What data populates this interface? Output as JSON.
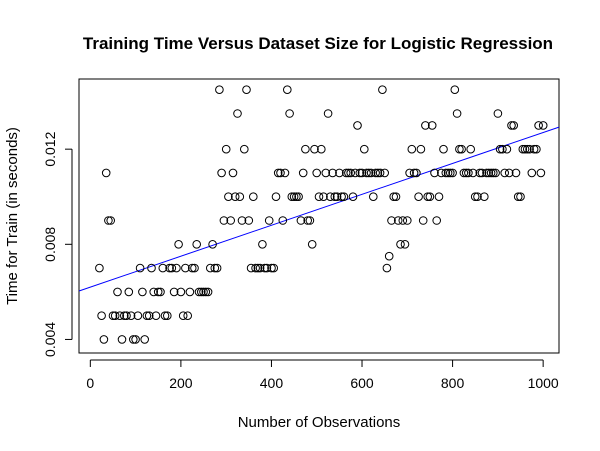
{
  "chart_data": {
    "type": "scatter",
    "title": "Training Time Versus Dataset Size for Logistic Regression",
    "xlabel": "Number of Observations",
    "ylabel": "Time for Train (in seconds)",
    "xlim": [
      -25,
      1035
    ],
    "ylim": [
      0.00343,
      0.01495
    ],
    "xticks": [
      0,
      200,
      400,
      600,
      800,
      1000
    ],
    "yticks": [
      0.004,
      0.008,
      0.012
    ],
    "ytick_labels": [
      "0.004",
      "0.008",
      "0.012"
    ],
    "grid": false,
    "point_color": "#000000",
    "line_color": "#0000ff",
    "trendline": {
      "intercept": 0.0062,
      "slope": 6.5e-06
    },
    "points": [
      [
        20,
        0.007
      ],
      [
        25,
        0.005
      ],
      [
        30,
        0.004
      ],
      [
        35,
        0.011
      ],
      [
        40,
        0.009
      ],
      [
        45,
        0.009
      ],
      [
        50,
        0.005
      ],
      [
        55,
        0.005
      ],
      [
        60,
        0.006
      ],
      [
        65,
        0.005
      ],
      [
        70,
        0.004
      ],
      [
        75,
        0.005
      ],
      [
        80,
        0.005
      ],
      [
        85,
        0.006
      ],
      [
        90,
        0.005
      ],
      [
        95,
        0.004
      ],
      [
        100,
        0.004
      ],
      [
        105,
        0.005
      ],
      [
        110,
        0.007
      ],
      [
        115,
        0.006
      ],
      [
        120,
        0.004
      ],
      [
        125,
        0.005
      ],
      [
        130,
        0.005
      ],
      [
        135,
        0.007
      ],
      [
        140,
        0.006
      ],
      [
        145,
        0.005
      ],
      [
        150,
        0.006
      ],
      [
        155,
        0.006
      ],
      [
        160,
        0.007
      ],
      [
        165,
        0.005
      ],
      [
        170,
        0.005
      ],
      [
        175,
        0.007
      ],
      [
        180,
        0.007
      ],
      [
        185,
        0.006
      ],
      [
        190,
        0.007
      ],
      [
        195,
        0.008
      ],
      [
        200,
        0.006
      ],
      [
        205,
        0.005
      ],
      [
        210,
        0.007
      ],
      [
        215,
        0.005
      ],
      [
        220,
        0.006
      ],
      [
        225,
        0.007
      ],
      [
        230,
        0.007
      ],
      [
        235,
        0.008
      ],
      [
        240,
        0.006
      ],
      [
        245,
        0.006
      ],
      [
        250,
        0.006
      ],
      [
        255,
        0.006
      ],
      [
        260,
        0.006
      ],
      [
        265,
        0.007
      ],
      [
        270,
        0.008
      ],
      [
        275,
        0.007
      ],
      [
        280,
        0.007
      ],
      [
        285,
        0.0145
      ],
      [
        290,
        0.011
      ],
      [
        295,
        0.009
      ],
      [
        300,
        0.012
      ],
      [
        305,
        0.01
      ],
      [
        310,
        0.009
      ],
      [
        315,
        0.011
      ],
      [
        320,
        0.01
      ],
      [
        325,
        0.0135
      ],
      [
        330,
        0.01
      ],
      [
        335,
        0.009
      ],
      [
        340,
        0.012
      ],
      [
        345,
        0.0145
      ],
      [
        350,
        0.009
      ],
      [
        355,
        0.007
      ],
      [
        360,
        0.01
      ],
      [
        365,
        0.007
      ],
      [
        370,
        0.007
      ],
      [
        375,
        0.007
      ],
      [
        380,
        0.008
      ],
      [
        385,
        0.007
      ],
      [
        390,
        0.007
      ],
      [
        395,
        0.009
      ],
      [
        400,
        0.007
      ],
      [
        405,
        0.007
      ],
      [
        410,
        0.01
      ],
      [
        415,
        0.011
      ],
      [
        420,
        0.011
      ],
      [
        425,
        0.009
      ],
      [
        430,
        0.011
      ],
      [
        435,
        0.0145
      ],
      [
        440,
        0.0135
      ],
      [
        445,
        0.01
      ],
      [
        450,
        0.01
      ],
      [
        455,
        0.01
      ],
      [
        460,
        0.01
      ],
      [
        465,
        0.009
      ],
      [
        470,
        0.011
      ],
      [
        475,
        0.012
      ],
      [
        480,
        0.009
      ],
      [
        485,
        0.009
      ],
      [
        490,
        0.008
      ],
      [
        495,
        0.012
      ],
      [
        500,
        0.011
      ],
      [
        505,
        0.01
      ],
      [
        510,
        0.012
      ],
      [
        515,
        0.01
      ],
      [
        520,
        0.011
      ],
      [
        525,
        0.0135
      ],
      [
        530,
        0.01
      ],
      [
        535,
        0.011
      ],
      [
        540,
        0.01
      ],
      [
        545,
        0.01
      ],
      [
        550,
        0.011
      ],
      [
        555,
        0.01
      ],
      [
        560,
        0.01
      ],
      [
        565,
        0.011
      ],
      [
        570,
        0.011
      ],
      [
        575,
        0.011
      ],
      [
        580,
        0.01
      ],
      [
        585,
        0.011
      ],
      [
        590,
        0.013
      ],
      [
        595,
        0.011
      ],
      [
        600,
        0.011
      ],
      [
        605,
        0.012
      ],
      [
        610,
        0.011
      ],
      [
        615,
        0.011
      ],
      [
        620,
        0.011
      ],
      [
        625,
        0.01
      ],
      [
        630,
        0.011
      ],
      [
        635,
        0.011
      ],
      [
        640,
        0.011
      ],
      [
        645,
        0.0145
      ],
      [
        650,
        0.011
      ],
      [
        655,
        0.007
      ],
      [
        660,
        0.0075
      ],
      [
        665,
        0.009
      ],
      [
        670,
        0.01
      ],
      [
        675,
        0.01
      ],
      [
        680,
        0.009
      ],
      [
        685,
        0.008
      ],
      [
        690,
        0.009
      ],
      [
        695,
        0.008
      ],
      [
        700,
        0.009
      ],
      [
        705,
        0.011
      ],
      [
        710,
        0.012
      ],
      [
        715,
        0.011
      ],
      [
        720,
        0.011
      ],
      [
        725,
        0.01
      ],
      [
        730,
        0.012
      ],
      [
        735,
        0.009
      ],
      [
        740,
        0.013
      ],
      [
        745,
        0.01
      ],
      [
        750,
        0.01
      ],
      [
        755,
        0.013
      ],
      [
        760,
        0.011
      ],
      [
        765,
        0.009
      ],
      [
        770,
        0.01
      ],
      [
        775,
        0.011
      ],
      [
        780,
        0.012
      ],
      [
        785,
        0.011
      ],
      [
        790,
        0.011
      ],
      [
        795,
        0.011
      ],
      [
        800,
        0.011
      ],
      [
        805,
        0.0145
      ],
      [
        810,
        0.0135
      ],
      [
        815,
        0.012
      ],
      [
        820,
        0.012
      ],
      [
        825,
        0.011
      ],
      [
        830,
        0.011
      ],
      [
        835,
        0.011
      ],
      [
        840,
        0.012
      ],
      [
        845,
        0.011
      ],
      [
        850,
        0.01
      ],
      [
        855,
        0.01
      ],
      [
        860,
        0.011
      ],
      [
        865,
        0.011
      ],
      [
        870,
        0.01
      ],
      [
        875,
        0.011
      ],
      [
        880,
        0.011
      ],
      [
        885,
        0.011
      ],
      [
        890,
        0.011
      ],
      [
        895,
        0.011
      ],
      [
        900,
        0.0135
      ],
      [
        905,
        0.012
      ],
      [
        910,
        0.012
      ],
      [
        915,
        0.011
      ],
      [
        920,
        0.012
      ],
      [
        925,
        0.011
      ],
      [
        930,
        0.013
      ],
      [
        935,
        0.013
      ],
      [
        940,
        0.011
      ],
      [
        945,
        0.01
      ],
      [
        950,
        0.01
      ],
      [
        955,
        0.012
      ],
      [
        960,
        0.012
      ],
      [
        965,
        0.012
      ],
      [
        970,
        0.012
      ],
      [
        975,
        0.011
      ],
      [
        980,
        0.012
      ],
      [
        985,
        0.012
      ],
      [
        990,
        0.013
      ],
      [
        995,
        0.011
      ],
      [
        1000,
        0.013
      ]
    ]
  }
}
